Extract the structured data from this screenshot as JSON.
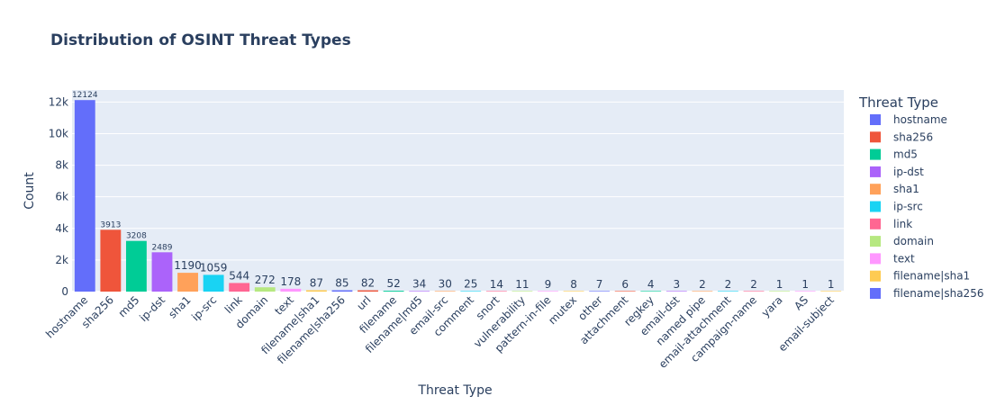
{
  "chart_data": {
    "type": "bar",
    "title": "Distribution of OSINT Threat Types",
    "xlabel": "Threat Type",
    "ylabel": "Count",
    "ylim": [
      0,
      12762
    ],
    "yticks": [
      0,
      2000,
      4000,
      6000,
      8000,
      10000,
      12000
    ],
    "ytick_labels": [
      "0",
      "2k",
      "4k",
      "6k",
      "8k",
      "10k",
      "12k"
    ],
    "grid": true,
    "legend_title": "Threat Type",
    "legend_position": "right",
    "categories": [
      "hostname",
      "sha256",
      "md5",
      "ip-dst",
      "sha1",
      "ip-src",
      "link",
      "domain",
      "text",
      "filename|sha1",
      "filename|sha256",
      "url",
      "filename",
      "filename|md5",
      "email-src",
      "comment",
      "snort",
      "vulnerability",
      "pattern-in-file",
      "mutex",
      "other",
      "attachment",
      "regkey",
      "email-dst",
      "named pipe",
      "email-attachment",
      "campaign-name",
      "yara",
      "AS",
      "email-subject"
    ],
    "values": [
      12124,
      3913,
      3208,
      2489,
      1190,
      1059,
      544,
      272,
      178,
      87,
      85,
      82,
      52,
      34,
      30,
      25,
      14,
      11,
      9,
      8,
      7,
      6,
      4,
      3,
      2,
      2,
      2,
      1,
      1,
      1
    ],
    "data_labels": [
      "12124",
      "3913",
      "3208",
      "2489",
      "1190",
      "1059",
      "544",
      "272",
      "178",
      "87",
      "85",
      "82",
      "52",
      "34",
      "30",
      "25",
      "14",
      "11",
      "9",
      "8",
      "7",
      "6",
      "4",
      "3",
      "2",
      "2",
      "2",
      "1",
      "1",
      "1"
    ],
    "colors": [
      "#636efa",
      "#EF553B",
      "#00cc96",
      "#ab63fa",
      "#FFA15A",
      "#19d3f3",
      "#FF6692",
      "#B6E880",
      "#FF97FF",
      "#FECB52",
      "#636efa",
      "#EF553B",
      "#00cc96",
      "#ab63fa",
      "#FFA15A",
      "#19d3f3",
      "#FF6692",
      "#B6E880",
      "#FF97FF",
      "#FECB52",
      "#636efa",
      "#EF553B",
      "#00cc96",
      "#ab63fa",
      "#FFA15A",
      "#19d3f3",
      "#FF6692",
      "#B6E880",
      "#FF97FF",
      "#FECB52"
    ],
    "legend_entries": [
      "hostname",
      "sha256",
      "md5",
      "ip-dst",
      "sha1",
      "ip-src",
      "link",
      "domain",
      "text",
      "filename|sha1",
      "filename|sha256"
    ],
    "plot_background": "#e5ecf6",
    "text_color": "#2a3f5f"
  }
}
